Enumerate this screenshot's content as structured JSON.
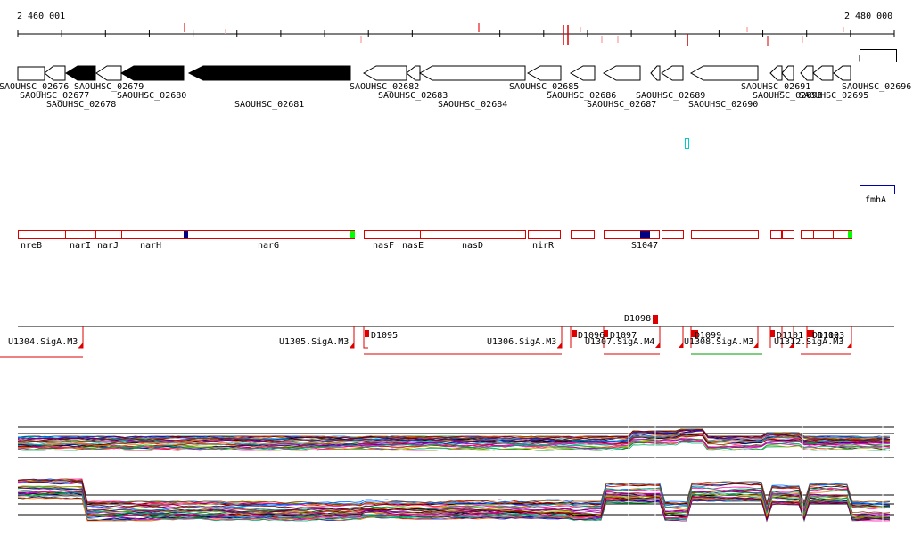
{
  "ruler": {
    "start_label": "2 460 001",
    "end_label": "2 480 000"
  },
  "colors": {
    "gene_black": "#000000",
    "operon_red": "#dd0000",
    "highlight_green": "#00ff00",
    "marker_navy": "#000080",
    "fmhA_blue": "#0000aa",
    "cyan_mark": "#00cccc",
    "rna_green": "#009900"
  },
  "genes": [
    {
      "id": "SAOUHSC_02676",
      "dir": "right",
      "filled": false
    },
    {
      "id": "SAOUHSC_02677",
      "dir": "left",
      "filled": false
    },
    {
      "id": "SAOUHSC_02678",
      "dir": "left",
      "filled": true
    },
    {
      "id": "SAOUHSC_02679",
      "dir": "left",
      "filled": false
    },
    {
      "id": "SAOUHSC_02680",
      "dir": "left",
      "filled": true
    },
    {
      "id": "SAOUHSC_02681",
      "dir": "left",
      "filled": true
    },
    {
      "id": "SAOUHSC_02682",
      "dir": "left",
      "filled": false
    },
    {
      "id": "SAOUHSC_02683",
      "dir": "left",
      "filled": false
    },
    {
      "id": "SAOUHSC_02684",
      "dir": "left",
      "filled": false
    },
    {
      "id": "SAOUHSC_02685",
      "dir": "left",
      "filled": false
    },
    {
      "id": "SAOUHSC_02686",
      "dir": "left",
      "filled": false
    },
    {
      "id": "SAOUHSC_02687",
      "dir": "left",
      "filled": false
    },
    {
      "id": "SAOUHSC_02689",
      "dir": "left",
      "filled": false
    },
    {
      "id": "SAOUHSC_02690",
      "dir": "left",
      "filled": false
    },
    {
      "id": "SAOUHSC_02691",
      "dir": "left",
      "filled": false
    },
    {
      "id": "SAOUHSC_02693",
      "dir": "left",
      "filled": false
    },
    {
      "id": "SAOUHSC_02695",
      "dir": "left",
      "filled": false
    },
    {
      "id": "SAOUHSC_02696",
      "dir": "right",
      "filled": false
    }
  ],
  "gene_labels": [
    "SAOUHSC_02676",
    "SAOUHSC_02677",
    "SAOUHSC_02678",
    "SAOUHSC_02679",
    "SAOUHSC_02680",
    "SAOUHSC_02681",
    "SAOUHSC_02682",
    "SAOUHSC_02683",
    "SAOUHSC_02684",
    "SAOUHSC_02685",
    "SAOUHSC_02686",
    "SAOUHSC_02687",
    "SAOUHSC_02689",
    "SAOUHSC_02690",
    "SAOUHSC_02691",
    "SAOUHSC_02693",
    "SAOUHSC_02695",
    "SAOUHSC_02696"
  ],
  "feature_labels": [
    "fmhA"
  ],
  "operon_labels": [
    "nreB",
    "narI",
    "narJ",
    "narH",
    "narG",
    "nasF",
    "nasE",
    "nasD",
    "nirR",
    "S1047"
  ],
  "regulon_labels": [
    "D1098",
    "U1304.SigA.M3",
    "U1305.SigA.M3",
    "D1095",
    "U1306.SigA.M3",
    "D1096",
    "D1097",
    "U1307.SigA.M4",
    "D1099",
    "U1308.SigA.M3",
    "D1101",
    "U1312.SigA.M3",
    "D1102",
    "D1103"
  ]
}
